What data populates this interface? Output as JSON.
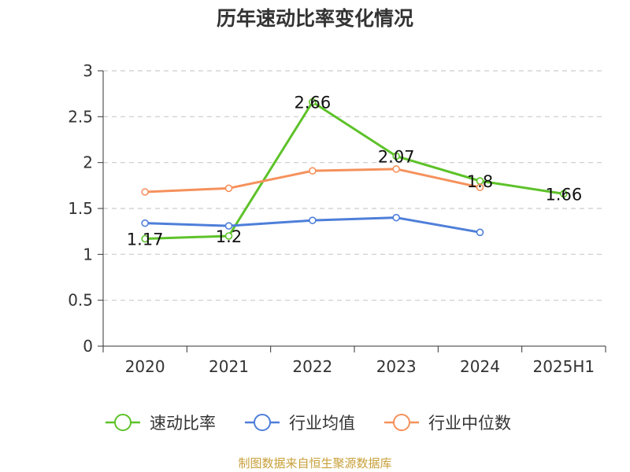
{
  "page": {
    "title": "历年速动比率变化情况",
    "source_note": "制图数据来自恒生聚源数据库"
  },
  "chart_data": {
    "type": "line",
    "title": "历年速动比率变化情况",
    "categories": [
      "2020",
      "2021",
      "2022",
      "2023",
      "2024",
      "2025H1"
    ],
    "ylim": [
      0,
      3
    ],
    "yticks": [
      0,
      0.5,
      1,
      1.5,
      2,
      2.5,
      3
    ],
    "ytick_labels": [
      "0",
      "0.5",
      "1",
      "1.5",
      "2",
      "2.5",
      "3"
    ],
    "grid": true,
    "legend_position": "bottom",
    "series": [
      {
        "name": "速动比率",
        "color": "#5dc229",
        "values": [
          1.17,
          1.2,
          2.66,
          2.07,
          1.8,
          1.66
        ],
        "labels": [
          "1.17",
          "1.2",
          "2.66",
          "2.07",
          "1.8",
          "1.66"
        ]
      },
      {
        "name": "行业均值",
        "color": "#4e7fd9",
        "values": [
          1.34,
          1.31,
          1.37,
          1.4,
          1.24,
          null
        ]
      },
      {
        "name": "行业中位数",
        "color": "#f5915c",
        "values": [
          1.68,
          1.72,
          1.91,
          1.93,
          1.73,
          null
        ]
      }
    ]
  }
}
